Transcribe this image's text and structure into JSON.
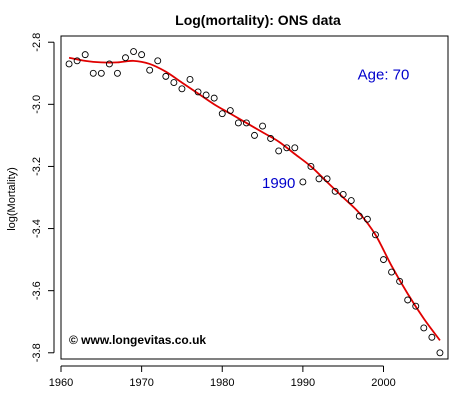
{
  "chart_data": {
    "type": "scatter",
    "title": "Log(mortality): ONS data",
    "xlabel": "",
    "ylabel": "log(Mortality)",
    "xlim": [
      1960,
      2008
    ],
    "ylim": [
      -3.82,
      -2.78
    ],
    "x_ticks": [
      1960,
      1970,
      1980,
      1990,
      2000
    ],
    "y_ticks": [
      -2.8,
      -3.0,
      -3.2,
      -3.4,
      -3.6,
      -3.8
    ],
    "x_tick_labels": [
      "1960",
      "1970",
      "1980",
      "1990",
      "2000"
    ],
    "y_tick_labels": [
      "-2.8",
      "-3.0",
      "-3.2",
      "-3.4",
      "-3.6",
      "-3.8"
    ],
    "grid": false,
    "series": [
      {
        "style": "points",
        "color": "#000000",
        "x": [
          1961,
          1962,
          1963,
          1964,
          1965,
          1966,
          1967,
          1968,
          1969,
          1970,
          1971,
          1972,
          1973,
          1974,
          1975,
          1976,
          1977,
          1978,
          1979,
          1980,
          1981,
          1982,
          1983,
          1984,
          1985,
          1986,
          1987,
          1988,
          1989,
          1990,
          1991,
          1992,
          1993,
          1994,
          1995,
          1996,
          1997,
          1998,
          1999,
          2000,
          2001,
          2002,
          2003,
          2004,
          2005,
          2006,
          2007
        ],
        "y": [
          -2.87,
          -2.86,
          -2.84,
          -2.9,
          -2.9,
          -2.87,
          -2.9,
          -2.85,
          -2.83,
          -2.84,
          -2.89,
          -2.86,
          -2.91,
          -2.93,
          -2.95,
          -2.92,
          -2.96,
          -2.97,
          -2.98,
          -3.03,
          -3.02,
          -3.06,
          -3.06,
          -3.1,
          -3.07,
          -3.11,
          -3.15,
          -3.14,
          -3.14,
          -3.25,
          -3.2,
          -3.24,
          -3.24,
          -3.28,
          -3.29,
          -3.31,
          -3.36,
          -3.37,
          -3.42,
          -3.5,
          -3.54,
          -3.57,
          -3.63,
          -3.65,
          -3.72,
          -3.75,
          -3.8
        ]
      },
      {
        "style": "line",
        "color": "#e00000",
        "x": [
          1961,
          1963,
          1965,
          1967,
          1969,
          1971,
          1973,
          1975,
          1977,
          1979,
          1981,
          1983,
          1985,
          1987,
          1989,
          1991,
          1993,
          1995,
          1997,
          1999,
          2001,
          2003,
          2005,
          2007
        ],
        "y": [
          -2.85,
          -2.86,
          -2.865,
          -2.865,
          -2.86,
          -2.87,
          -2.895,
          -2.93,
          -2.965,
          -3.0,
          -3.03,
          -3.06,
          -3.09,
          -3.12,
          -3.16,
          -3.2,
          -3.25,
          -3.3,
          -3.35,
          -3.42,
          -3.52,
          -3.61,
          -3.69,
          -3.76
        ]
      }
    ],
    "annotations": [
      {
        "text": "Age: 70",
        "x": 2000,
        "y": -2.92,
        "color": "#0000cc"
      },
      {
        "text": "1990",
        "x": 1987,
        "y": -3.27,
        "color": "#0000cc"
      }
    ],
    "copyright": "© www.longevitas.co.uk"
  }
}
